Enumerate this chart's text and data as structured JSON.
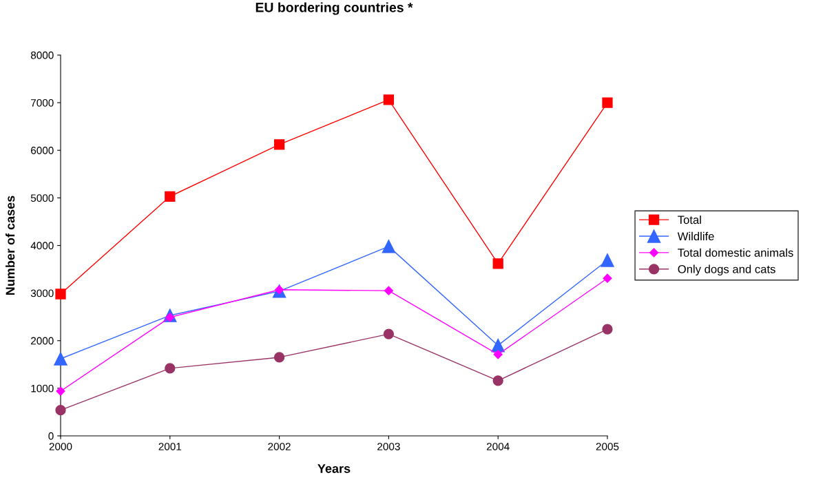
{
  "chart_data": {
    "type": "line",
    "title": "EU bordering countries *",
    "xlabel": "Years",
    "ylabel": "Number of cases",
    "x": [
      2000,
      2001,
      2002,
      2003,
      2004,
      2005
    ],
    "xlim": [
      2000,
      2005
    ],
    "xticks": [
      2000,
      2001,
      2002,
      2003,
      2004,
      2005
    ],
    "ylim": [
      0,
      8000
    ],
    "yticks": [
      0,
      1000,
      2000,
      3000,
      4000,
      5000,
      6000,
      7000,
      8000
    ],
    "grid": false,
    "legend": "right",
    "series": [
      {
        "name": "Total",
        "color": "#ff0000",
        "marker": "square",
        "values": [
          2980,
          5030,
          6120,
          7060,
          3620,
          7000
        ]
      },
      {
        "name": "Wildlife",
        "color": "#3366ff",
        "marker": "triangle",
        "values": [
          1620,
          2530,
          3040,
          3980,
          1900,
          3690
        ]
      },
      {
        "name": "Total domestic animals",
        "color": "#ff00ff",
        "marker": "diamond",
        "values": [
          940,
          2490,
          3070,
          3050,
          1710,
          3310
        ]
      },
      {
        "name": "Only dogs and cats",
        "color": "#993366",
        "marker": "circle",
        "values": [
          540,
          1420,
          1650,
          2140,
          1160,
          2240
        ]
      }
    ]
  }
}
